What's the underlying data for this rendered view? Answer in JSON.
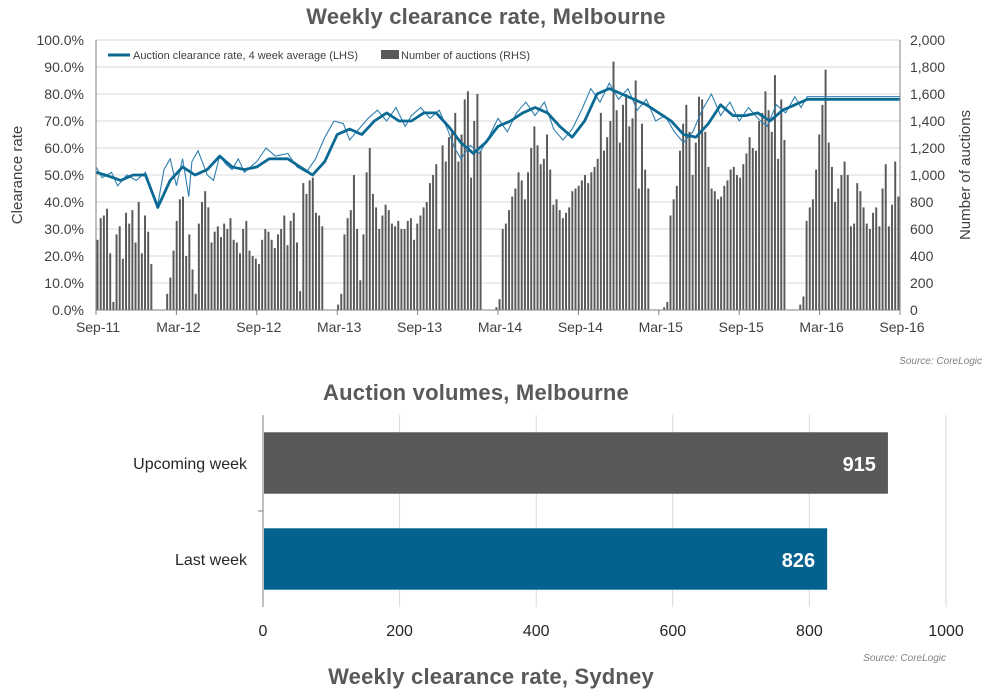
{
  "top_chart": {
    "source": "Source: CoreLogic"
  },
  "bottom_chart": {
    "source": "Source: CoreLogic"
  },
  "next_chart_title": "Weekly clearance rate, Sydney",
  "colors": {
    "line_thick": "#0a6a94",
    "line_thin": "#2f7fae",
    "bars_dark": "#595959",
    "bar_upcoming": "#595959",
    "bar_last": "#05628f",
    "gridline": "#d9d9d9"
  },
  "chart_data": [
    {
      "type": "bar+line",
      "title": "Weekly clearance rate, Melbourne",
      "ylabel_left": "Clearance rate",
      "ylabel_right": "Number of auctions",
      "ylim_left": [
        0,
        100
      ],
      "ylim_right": [
        0,
        2000
      ],
      "left_ticks": [
        "0.0%",
        "10.0%",
        "20.0%",
        "30.0%",
        "40.0%",
        "50.0%",
        "60.0%",
        "70.0%",
        "80.0%",
        "90.0%",
        "100.0%"
      ],
      "right_ticks": [
        "0",
        "200",
        "400",
        "600",
        "800",
        "1,000",
        "1,200",
        "1,400",
        "1,600",
        "1,800",
        "2,000"
      ],
      "x_ticks": [
        "Sep-11",
        "Mar-12",
        "Sep-12",
        "Mar-13",
        "Sep-13",
        "Mar-14",
        "Sep-14",
        "Mar-15",
        "Sep-15",
        "Mar-16",
        "Sep-16"
      ],
      "legend": [
        "Auction clearance rate, 4 week average (LHS)",
        "Number of auctions (RHS)"
      ],
      "legend_position": "top-left",
      "grid": true,
      "weeks_per_tick": 26,
      "series": [
        {
          "name": "Auction clearance rate, 4 week average (LHS)",
          "kind": "line",
          "axis": "left",
          "anchors": [
            [
              0,
              51
            ],
            [
              3,
              50
            ],
            [
              8,
              48
            ],
            [
              12,
              50
            ],
            [
              16,
              50
            ],
            [
              20,
              38
            ],
            [
              24,
              48
            ],
            [
              28,
              53
            ],
            [
              32,
              50
            ],
            [
              36,
              52
            ],
            [
              40,
              57
            ],
            [
              44,
              53
            ],
            [
              48,
              52
            ],
            [
              52,
              53
            ],
            [
              56,
              56
            ],
            [
              62,
              56
            ],
            [
              66,
              53
            ],
            [
              70,
              50
            ],
            [
              74,
              55
            ],
            [
              78,
              65
            ],
            [
              82,
              67
            ],
            [
              86,
              65
            ],
            [
              90,
              70
            ],
            [
              94,
              73
            ],
            [
              98,
              70
            ],
            [
              102,
              70
            ],
            [
              106,
              73
            ],
            [
              110,
              73
            ],
            [
              114,
              68
            ],
            [
              118,
              62
            ],
            [
              122,
              58
            ],
            [
              126,
              62
            ],
            [
              130,
              68
            ],
            [
              134,
              70
            ],
            [
              138,
              73
            ],
            [
              142,
              75
            ],
            [
              146,
              73
            ],
            [
              150,
              68
            ],
            [
              154,
              64
            ],
            [
              158,
              70
            ],
            [
              162,
              80
            ],
            [
              166,
              82
            ],
            [
              170,
              80
            ],
            [
              174,
              78
            ],
            [
              178,
              76
            ],
            [
              182,
              73
            ],
            [
              186,
              70
            ],
            [
              190,
              65
            ],
            [
              194,
              64
            ],
            [
              198,
              69
            ],
            [
              202,
              76
            ],
            [
              206,
              72
            ],
            [
              210,
              72
            ],
            [
              214,
              73
            ],
            [
              218,
              70
            ],
            [
              222,
              74
            ],
            [
              226,
              76
            ],
            [
              230,
              78
            ]
          ]
        },
        {
          "name": "Weekly clearance rate",
          "kind": "line-thin",
          "axis": "left",
          "anchors": [
            [
              0,
              53
            ],
            [
              2,
              49
            ],
            [
              5,
              51
            ],
            [
              7,
              46
            ],
            [
              10,
              50
            ],
            [
              13,
              48
            ],
            [
              16,
              51
            ],
            [
              18,
              44
            ],
            [
              20,
              39
            ],
            [
              22,
              52
            ],
            [
              24,
              56
            ],
            [
              26,
              46
            ],
            [
              28,
              56
            ],
            [
              30,
              42
            ],
            [
              31,
              55
            ],
            [
              33,
              59
            ],
            [
              36,
              50
            ],
            [
              38,
              48
            ],
            [
              40,
              57
            ],
            [
              42,
              54
            ],
            [
              44,
              52
            ],
            [
              46,
              56
            ],
            [
              48,
              51
            ],
            [
              52,
              55
            ],
            [
              55,
              60
            ],
            [
              58,
              57
            ],
            [
              62,
              58
            ],
            [
              65,
              53
            ],
            [
              68,
              51
            ],
            [
              71,
              56
            ],
            [
              74,
              64
            ],
            [
              77,
              70
            ],
            [
              80,
              69
            ],
            [
              82,
              63
            ],
            [
              85,
              67
            ],
            [
              88,
              71
            ],
            [
              91,
              74
            ],
            [
              94,
              70
            ],
            [
              97,
              75
            ],
            [
              100,
              68
            ],
            [
              102,
              72
            ],
            [
              105,
              75
            ],
            [
              108,
              71
            ],
            [
              111,
              74
            ],
            [
              114,
              66
            ],
            [
              116,
              60
            ],
            [
              118,
              56
            ],
            [
              121,
              61
            ],
            [
              124,
              58
            ],
            [
              127,
              64
            ],
            [
              130,
              71
            ],
            [
              133,
              66
            ],
            [
              136,
              73
            ],
            [
              139,
              77
            ],
            [
              142,
              72
            ],
            [
              145,
              77
            ],
            [
              148,
              67
            ],
            [
              151,
              63
            ],
            [
              154,
              67
            ],
            [
              157,
              74
            ],
            [
              160,
              82
            ],
            [
              163,
              77
            ],
            [
              166,
              84
            ],
            [
              169,
              78
            ],
            [
              172,
              82
            ],
            [
              175,
              74
            ],
            [
              178,
              78
            ],
            [
              181,
              70
            ],
            [
              184,
              72
            ],
            [
              187,
              66
            ],
            [
              190,
              62
            ],
            [
              193,
              66
            ],
            [
              196,
              74
            ],
            [
              199,
              80
            ],
            [
              202,
              72
            ],
            [
              205,
              77
            ],
            [
              208,
              70
            ],
            [
              211,
              75
            ],
            [
              214,
              71
            ],
            [
              217,
              68
            ],
            [
              220,
              76
            ],
            [
              223,
              73
            ],
            [
              226,
              79
            ],
            [
              228,
              75
            ],
            [
              230,
              79
            ]
          ]
        },
        {
          "name": "Number of auctions (RHS)",
          "kind": "bar",
          "axis": "right",
          "values": [
            520,
            680,
            700,
            750,
            420,
            60,
            560,
            620,
            380,
            720,
            640,
            740,
            500,
            800,
            420,
            700,
            580,
            340,
            0,
            0,
            0,
            0,
            120,
            240,
            440,
            660,
            820,
            840,
            400,
            560,
            300,
            120,
            640,
            800,
            880,
            760,
            500,
            580,
            620,
            540,
            640,
            600,
            680,
            520,
            500,
            420,
            600,
            660,
            440,
            400,
            380,
            340,
            520,
            600,
            580,
            520,
            460,
            560,
            600,
            700,
            480,
            660,
            720,
            500,
            140,
            940,
            860,
            960,
            980,
            720,
            700,
            620,
            0,
            0,
            0,
            0,
            40,
            120,
            560,
            680,
            740,
            1000,
            600,
            220,
            560,
            1020,
            1200,
            860,
            760,
            600,
            700,
            780,
            740,
            640,
            620,
            660,
            600,
            600,
            660,
            680,
            520,
            640,
            700,
            760,
            800,
            940,
            1000,
            1080,
            600,
            1220,
            1100,
            1280,
            1320,
            1460,
            1100,
            1300,
            1560,
            1620,
            980,
            1400,
            1600,
            1180,
            0,
            0,
            0,
            0,
            20,
            80,
            600,
            640,
            740,
            840,
            900,
            1020,
            960,
            820,
            1020,
            1200,
            1360,
            1220,
            1080,
            1120,
            1300,
            1040,
            780,
            820,
            740,
            680,
            720,
            760,
            880,
            900,
            920,
            960,
            1000,
            940,
            1020,
            1060,
            1120,
            1460,
            1180,
            1280,
            1400,
            1840,
            1480,
            1240,
            1520,
            1600,
            1360,
            1420,
            1700,
            900,
            1380,
            1040,
            900,
            0,
            0,
            0,
            0,
            20,
            60,
            700,
            820,
            920,
            1180,
            1380,
            1520,
            1320,
            1000,
            1240,
            1580,
            1560,
            1320,
            1060,
            900,
            880,
            820,
            840,
            920,
            960,
            1040,
            1060,
            1000,
            980,
            1080,
            1160,
            1280,
            1200,
            1180,
            1400,
            1460,
            1620,
            1480,
            1320,
            1740,
            1120,
            1560,
            1260,
            0,
            0,
            0,
            0,
            40,
            100,
            660,
            760,
            820,
            1040,
            1300,
            1520,
            1780,
            1240,
            1060,
            800,
            900,
            1000,
            1100,
            1000,
            620,
            640,
            940,
            880,
            760,
            640,
            600,
            720,
            760,
            620,
            900,
            1080,
            620,
            780,
            1100,
            840
          ]
        }
      ]
    },
    {
      "type": "bar",
      "orientation": "horizontal",
      "title": "Auction volumes, Melbourne",
      "categories": [
        "Upcoming week",
        "Last week"
      ],
      "values": [
        915,
        826
      ],
      "data_labels": [
        "915",
        "826"
      ],
      "x_ticks": [
        "0",
        "200",
        "400",
        "600",
        "800",
        "1000"
      ],
      "xlim": [
        0,
        1000
      ],
      "grid": true
    }
  ]
}
